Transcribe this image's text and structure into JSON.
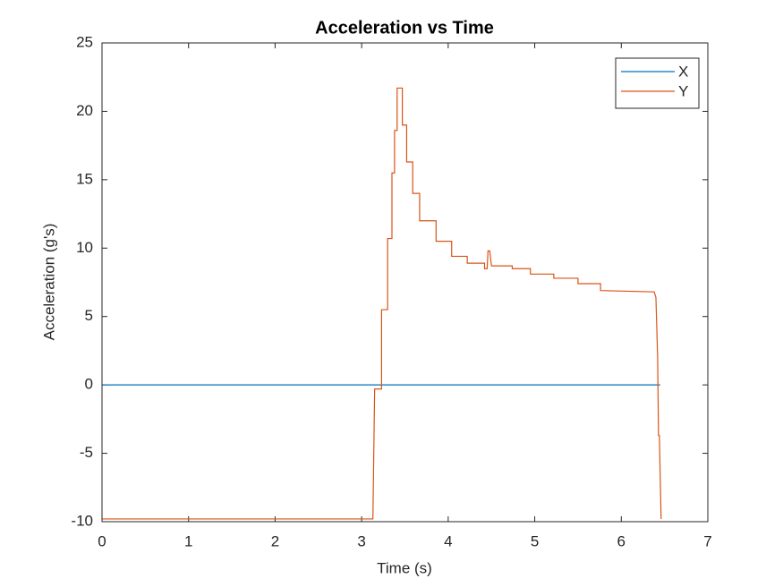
{
  "chart_data": {
    "type": "line",
    "title": "Acceleration vs Time",
    "xlabel": "Time (s)",
    "ylabel": "Acceleration (g's)",
    "xlim": [
      0,
      7
    ],
    "xticks": [
      0,
      1,
      2,
      3,
      4,
      5,
      6,
      7
    ],
    "ylim": [
      -10,
      25
    ],
    "yticks": [
      -10,
      -5,
      0,
      5,
      10,
      15,
      20,
      25
    ],
    "legend": "northeast",
    "series": [
      {
        "name": "X",
        "color": "#0072BD",
        "x": [
          0,
          6.45
        ],
        "values": [
          0,
          0
        ]
      },
      {
        "name": "Y",
        "color": "#D95319",
        "x": [
          0,
          3.13,
          3.15,
          3.23,
          3.23,
          3.3,
          3.3,
          3.35,
          3.35,
          3.38,
          3.38,
          3.41,
          3.41,
          3.47,
          3.47,
          3.52,
          3.52,
          3.59,
          3.59,
          3.67,
          3.67,
          3.86,
          3.86,
          4.04,
          4.04,
          4.22,
          4.22,
          4.42,
          4.42,
          4.45,
          4.46,
          4.48,
          4.5,
          4.74,
          4.74,
          4.95,
          4.95,
          5.22,
          5.22,
          5.5,
          5.5,
          5.76,
          5.76,
          6.38,
          6.4,
          6.42,
          6.43,
          6.44,
          6.46
        ],
        "values": [
          -9.8,
          -9.8,
          -0.3,
          -0.3,
          5.5,
          5.5,
          10.7,
          10.7,
          15.5,
          15.5,
          18.6,
          18.6,
          21.7,
          21.7,
          19,
          19,
          16.3,
          16.3,
          14,
          14,
          12,
          12,
          10.5,
          10.5,
          9.4,
          9.4,
          8.9,
          8.9,
          8.5,
          8.5,
          9.8,
          9.8,
          8.7,
          8.7,
          8.5,
          8.5,
          8.1,
          8.1,
          7.8,
          7.8,
          7.4,
          7.4,
          6.9,
          6.8,
          6.4,
          2,
          -3.7,
          -3.7,
          -9.8
        ]
      }
    ]
  }
}
